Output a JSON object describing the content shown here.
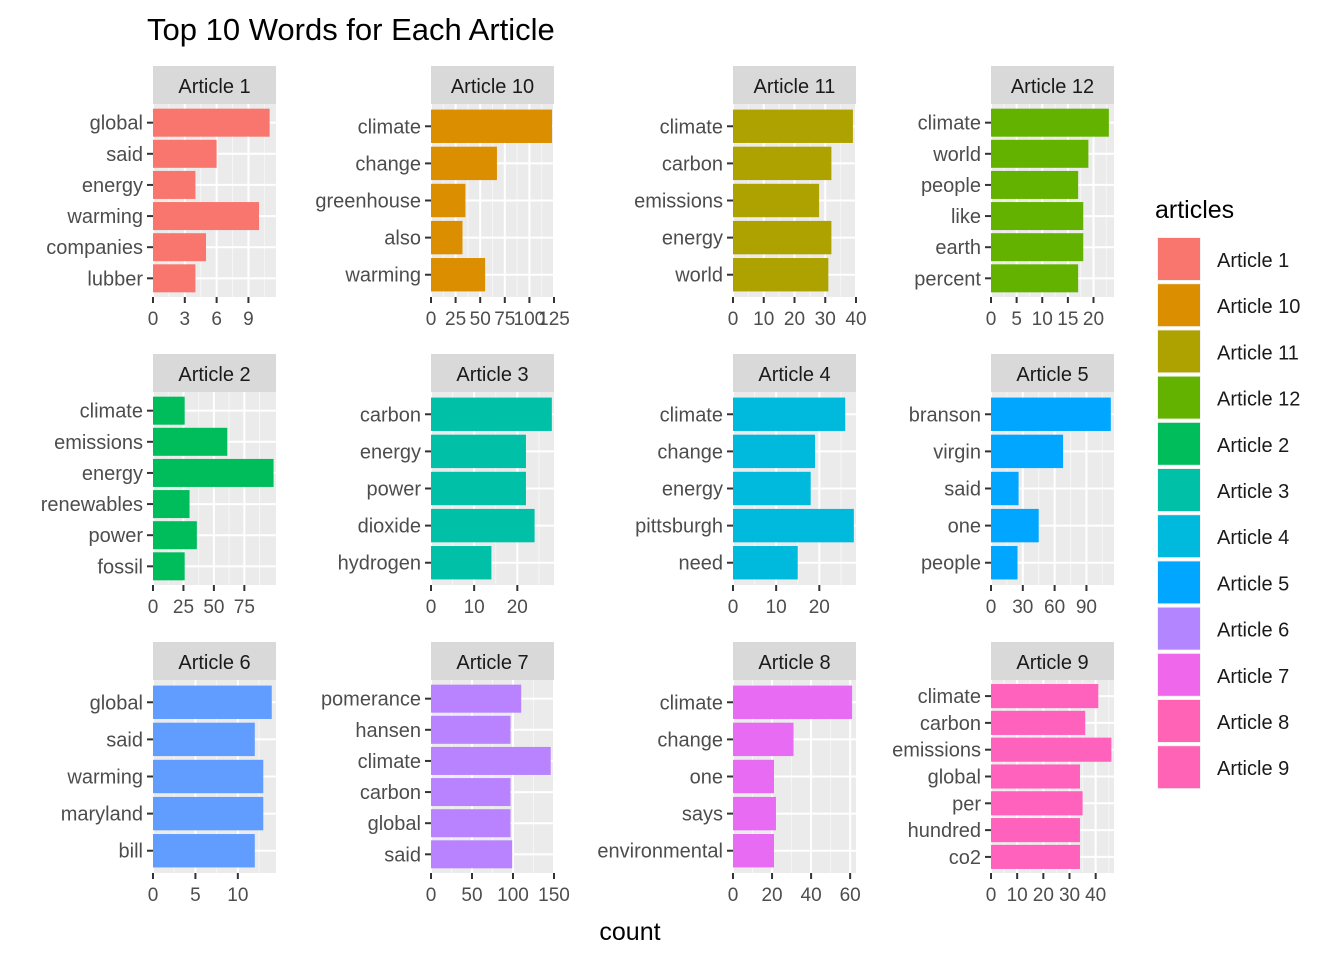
{
  "chart_data": {
    "type": "bar",
    "orientation": "horizontal",
    "title": "Top 10 Words for Each Article",
    "xlabel": "count",
    "ylabel": "",
    "grid": true,
    "legend": {
      "title": "articles",
      "placement": "right",
      "entries": [
        {
          "label": "Article 1",
          "color": "#F8766D"
        },
        {
          "label": "Article 10",
          "color": "#DB8E00"
        },
        {
          "label": "Article 11",
          "color": "#AEA200"
        },
        {
          "label": "Article 12",
          "color": "#64B200"
        },
        {
          "label": "Article 2",
          "color": "#00BD5C"
        },
        {
          "label": "Article 3",
          "color": "#00C1A7"
        },
        {
          "label": "Article 4",
          "color": "#00BADE"
        },
        {
          "label": "Article 5",
          "color": "#00A6FF"
        },
        {
          "label": "Article 6",
          "color": "#B385FF"
        },
        {
          "label": "Article 7",
          "color": "#EF67EB"
        },
        {
          "label": "Article 8",
          "color": "#FF63B6"
        },
        {
          "label": "Article 9",
          "color": "#FF63B6"
        }
      ]
    },
    "facets": [
      {
        "title": "Article 1",
        "color": "#F8766D",
        "categories": [
          "global",
          "said",
          "energy",
          "warming",
          "companies",
          "lubber"
        ],
        "values": [
          11,
          6,
          4,
          10,
          5,
          4
        ],
        "xlim": [
          0,
          11.6
        ],
        "ticks": [
          0,
          3,
          6,
          9
        ]
      },
      {
        "title": "Article 10",
        "color": "#DB8E00",
        "categories": [
          "climate",
          "change",
          "greenhouse",
          "also",
          "warming"
        ],
        "values": [
          123,
          67,
          35,
          32,
          55
        ],
        "xlim": [
          0,
          125
        ],
        "ticks": [
          0,
          25,
          50,
          75,
          100,
          125
        ]
      },
      {
        "title": "Article 11",
        "color": "#AEA200",
        "categories": [
          "climate",
          "carbon",
          "emissions",
          "energy",
          "world"
        ],
        "values": [
          39,
          32,
          28,
          32,
          31
        ],
        "xlim": [
          0,
          40
        ],
        "ticks": [
          0,
          10,
          20,
          30,
          40
        ]
      },
      {
        "title": "Article 12",
        "color": "#64B200",
        "categories": [
          "climate",
          "world",
          "people",
          "like",
          "earth",
          "percent"
        ],
        "values": [
          23,
          19,
          17,
          18,
          18,
          17
        ],
        "xlim": [
          0,
          24
        ],
        "ticks": [
          0,
          5,
          10,
          15,
          20
        ]
      },
      {
        "title": "Article 2",
        "color": "#00BD5C",
        "categories": [
          "climate",
          "emissions",
          "energy",
          "renewables",
          "power",
          "fossil"
        ],
        "values": [
          26,
          61,
          99,
          30,
          36,
          26
        ],
        "xlim": [
          0,
          101
        ],
        "ticks": [
          0,
          25,
          50,
          75
        ]
      },
      {
        "title": "Article 3",
        "color": "#00C1A7",
        "categories": [
          "carbon",
          "energy",
          "power",
          "dioxide",
          "hydrogen"
        ],
        "values": [
          28,
          22,
          22,
          24,
          14
        ],
        "xlim": [
          0,
          28.5
        ],
        "ticks": [
          0,
          10,
          20
        ]
      },
      {
        "title": "Article 4",
        "color": "#00BADE",
        "categories": [
          "climate",
          "change",
          "energy",
          "pittsburgh",
          "need"
        ],
        "values": [
          26,
          19,
          18,
          28,
          15
        ],
        "xlim": [
          0,
          28.5
        ],
        "ticks": [
          0,
          10,
          20
        ]
      },
      {
        "title": "Article 5",
        "color": "#00A6FF",
        "categories": [
          "branson",
          "virgin",
          "said",
          "one",
          "people"
        ],
        "values": [
          113,
          68,
          26,
          45,
          25
        ],
        "xlim": [
          0,
          116
        ],
        "ticks": [
          0,
          30,
          60,
          90
        ]
      },
      {
        "title": "Article 6",
        "color": "#619CFF",
        "categories": [
          "global",
          "said",
          "warming",
          "maryland",
          "bill"
        ],
        "values": [
          14,
          12,
          13,
          13,
          12
        ],
        "xlim": [
          0,
          14.5
        ],
        "ticks": [
          0,
          5,
          10
        ]
      },
      {
        "title": "Article 7",
        "color": "#B983FF",
        "categories": [
          "pomerance",
          "hansen",
          "climate",
          "carbon",
          "global",
          "said"
        ],
        "values": [
          110,
          97,
          146,
          97,
          97,
          99
        ],
        "xlim": [
          0,
          150
        ],
        "ticks": [
          0,
          50,
          100,
          150
        ]
      },
      {
        "title": "Article 8",
        "color": "#E76BF3",
        "categories": [
          "climate",
          "change",
          "one",
          "says",
          "environmental"
        ],
        "values": [
          61,
          31,
          21,
          22,
          21
        ],
        "xlim": [
          0,
          63
        ],
        "ticks": [
          0,
          20,
          40,
          60
        ]
      },
      {
        "title": "Article 9",
        "color": "#FF62BC",
        "categories": [
          "climate",
          "carbon",
          "emissions",
          "global",
          "per",
          "hundred",
          "co2"
        ],
        "values": [
          41,
          36,
          46,
          34,
          35,
          34,
          34
        ],
        "xlim": [
          0,
          47
        ],
        "ticks": [
          0,
          10,
          20,
          30,
          40
        ]
      }
    ]
  }
}
